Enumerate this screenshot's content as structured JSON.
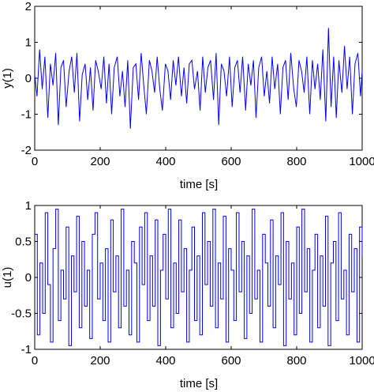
{
  "figure": {
    "background": "#ffffff",
    "line_color": "#0000ff",
    "axis_color": "#000000"
  },
  "chart_data": [
    {
      "type": "line",
      "title": "",
      "xlabel": "time [s]",
      "ylabel": "y(1)",
      "xlim": [
        0,
        1000
      ],
      "ylim": [
        -2,
        2
      ],
      "xticks": [
        0,
        200,
        400,
        600,
        800,
        1000
      ],
      "yticks": [
        -2,
        -1,
        0,
        1,
        2
      ],
      "xtick_labels": [
        "0",
        "200",
        "400",
        "600",
        "800",
        "1000"
      ],
      "ytick_labels": [
        "-2",
        "-1",
        "0",
        "1",
        "2"
      ],
      "grid": false,
      "legend": "none",
      "series": [
        {
          "color": "#0000ff",
          "step": false,
          "x": [
            0,
            7,
            15,
            23,
            31,
            40,
            48,
            56,
            64,
            72,
            80,
            88,
            96,
            105,
            113,
            121,
            129,
            137,
            145,
            154,
            162,
            170,
            178,
            186,
            194,
            203,
            211,
            219,
            227,
            235,
            243,
            252,
            260,
            268,
            276,
            284,
            292,
            301,
            309,
            317,
            325,
            333,
            341,
            350,
            358,
            366,
            374,
            382,
            390,
            399,
            407,
            415,
            423,
            431,
            439,
            448,
            456,
            464,
            472,
            480,
            488,
            497,
            505,
            513,
            521,
            529,
            537,
            546,
            554,
            562,
            570,
            578,
            586,
            595,
            603,
            611,
            619,
            627,
            635,
            644,
            652,
            660,
            668,
            676,
            684,
            693,
            701,
            709,
            717,
            725,
            733,
            742,
            750,
            758,
            766,
            774,
            782,
            791,
            799,
            807,
            815,
            823,
            831,
            840,
            848,
            856,
            864,
            872,
            880,
            889,
            897,
            905,
            913,
            921,
            929,
            938,
            946,
            954,
            962,
            970,
            978,
            987,
            995,
            1000
          ],
          "y": [
            0.1,
            -0.5,
            0.8,
            -0.3,
            0.6,
            -1.1,
            0.4,
            -0.2,
            0.7,
            -1.3,
            0.3,
            0.5,
            -0.8,
            0.2,
            0.6,
            -0.4,
            0.7,
            -1.2,
            0.1,
            0.4,
            -0.6,
            0.3,
            -0.9,
            0.5,
            0.2,
            -0.3,
            0.6,
            -0.7,
            0.4,
            -1.0,
            0.3,
            0.6,
            -0.5,
            0.2,
            -0.8,
            0.5,
            -1.4,
            0.3,
            0.4,
            -0.6,
            0.7,
            -0.2,
            -1.0,
            0.5,
            0.2,
            -0.4,
            0.6,
            -0.3,
            -0.9,
            0.4,
            0.2,
            -0.6,
            0.5,
            -0.2,
            0.6,
            -0.5,
            0.3,
            -0.7,
            0.4,
            0.5,
            -0.3,
            0.2,
            -0.9,
            0.6,
            -0.4,
            0.3,
            0.5,
            -0.6,
            0.7,
            -1.3,
            0.4,
            0.2,
            -0.5,
            0.6,
            -0.8,
            0.3,
            0.5,
            -0.4,
            0.6,
            -0.9,
            0.4,
            -0.2,
            0.5,
            -1.1,
            0.3,
            0.6,
            -0.5,
            0.2,
            -0.7,
            0.6,
            -0.3,
            0.4,
            -1.0,
            0.3,
            0.5,
            -0.6,
            0.7,
            -0.3,
            -0.8,
            0.5,
            0.2,
            -0.4,
            0.6,
            -1.0,
            0.5,
            -0.3,
            0.4,
            -0.6,
            0.8,
            -1.2,
            1.4,
            -0.8,
            0.6,
            -1.1,
            0.5,
            -0.4,
            0.9,
            -0.3,
            0.6,
            -1.0,
            0.4,
            0.7,
            -0.5,
            0.2
          ]
        }
      ]
    },
    {
      "type": "line",
      "title": "",
      "xlabel": "time [s]",
      "ylabel": "u(1)",
      "xlim": [
        0,
        1000
      ],
      "ylim": [
        -1,
        1
      ],
      "xticks": [
        0,
        200,
        400,
        600,
        800,
        1000
      ],
      "yticks": [
        -1,
        -0.5,
        0,
        0.5,
        1
      ],
      "xtick_labels": [
        "0",
        "200",
        "400",
        "600",
        "800",
        "1000"
      ],
      "ytick_labels": [
        "-1",
        "-0.5",
        "0",
        "0.5",
        "1"
      ],
      "grid": false,
      "legend": "none",
      "series": [
        {
          "color": "#0000ff",
          "step": true,
          "x": [
            0,
            8,
            16,
            24,
            32,
            40,
            48,
            56,
            64,
            72,
            80,
            88,
            96,
            104,
            112,
            120,
            128,
            136,
            144,
            152,
            160,
            168,
            176,
            184,
            192,
            200,
            208,
            216,
            224,
            232,
            240,
            248,
            256,
            264,
            272,
            280,
            288,
            296,
            304,
            312,
            320,
            328,
            336,
            344,
            352,
            360,
            368,
            376,
            384,
            392,
            400,
            408,
            416,
            424,
            432,
            440,
            448,
            456,
            464,
            472,
            480,
            488,
            496,
            504,
            512,
            520,
            528,
            536,
            544,
            552,
            560,
            568,
            576,
            584,
            592,
            600,
            608,
            616,
            624,
            632,
            640,
            648,
            656,
            664,
            672,
            680,
            688,
            696,
            704,
            712,
            720,
            728,
            736,
            744,
            752,
            760,
            768,
            776,
            784,
            792,
            800,
            808,
            816,
            824,
            832,
            840,
            848,
            856,
            864,
            872,
            880,
            888,
            896,
            904,
            912,
            920,
            928,
            936,
            944,
            952,
            960,
            968,
            976,
            984,
            992,
            1000
          ],
          "y": [
            0.6,
            -0.8,
            0.2,
            -0.5,
            0.9,
            -0.1,
            -0.9,
            0.4,
            0.95,
            -0.6,
            0.1,
            -0.3,
            0.7,
            -0.95,
            0.3,
            -0.2,
            0.85,
            -0.7,
            0.5,
            -0.4,
            0.1,
            -0.85,
            0.6,
            0.9,
            -0.3,
            0.2,
            -0.6,
            0.4,
            -0.9,
            0.8,
            -0.2,
            0.3,
            -0.7,
            0.95,
            -0.4,
            0.1,
            -0.8,
            0.5,
            0.2,
            -0.9,
            0.7,
            -0.1,
            0.9,
            -0.6,
            0.3,
            -0.4,
            0.8,
            -0.95,
            0.1,
            0.6,
            -0.3,
            0.95,
            -0.7,
            0.2,
            -0.5,
            0.8,
            -0.2,
            0.4,
            -0.9,
            0.1,
            0.7,
            -0.6,
            0.3,
            -0.8,
            0.9,
            -0.1,
            0.5,
            -0.4,
            0.95,
            -0.7,
            0.2,
            -0.3,
            0.85,
            -0.9,
            0.4,
            0.1,
            -0.6,
            0.9,
            -0.2,
            0.5,
            -0.85,
            0.3,
            -0.5,
            0.95,
            -0.3,
            0.1,
            -0.9,
            0.6,
            0.2,
            -0.4,
            0.8,
            -0.7,
            0.3,
            -0.1,
            0.9,
            -0.95,
            0.5,
            -0.3,
            0.2,
            -0.8,
            0.7,
            -0.5,
            0.95,
            -0.2,
            0.4,
            -0.9,
            0.1,
            0.6,
            -0.7,
            0.3,
            -0.4,
            0.85,
            -0.95,
            0.2,
            0.5,
            -0.6,
            0.9,
            -0.3,
            0.1,
            -0.8,
            0.6,
            -0.2,
            0.4,
            -0.9,
            0.7,
            0.3
          ]
        }
      ]
    }
  ]
}
